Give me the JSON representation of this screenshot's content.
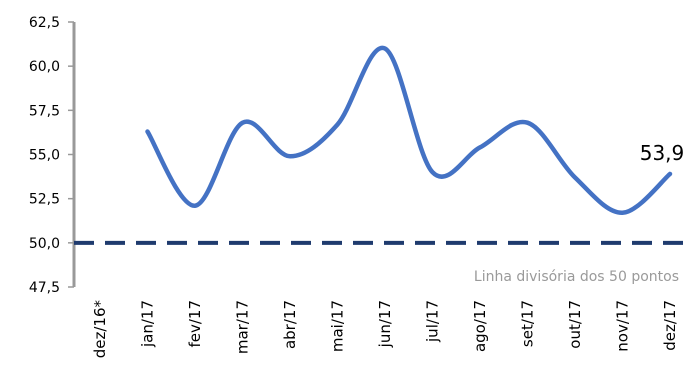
{
  "chart_data": {
    "type": "line",
    "categories": [
      "dez/16*",
      "jan/17",
      "fev/17",
      "mar/17",
      "abr/17",
      "mai/17",
      "jun/17",
      "jul/17",
      "ago/17",
      "set/17",
      "out/17",
      "nov/17",
      "dez/17"
    ],
    "series": [
      {
        "values": [
          null,
          56.3,
          52.1,
          56.8,
          54.9,
          56.7,
          61.0,
          54.0,
          55.4,
          56.8,
          53.7,
          51.7,
          53.9
        ]
      }
    ],
    "y_ticks": [
      "62,5",
      "60,0",
      "57,5",
      "55,0",
      "52,5",
      "50,0",
      "47,5"
    ],
    "ylim": [
      47.5,
      62.5
    ],
    "reference_line": {
      "value": 50.0,
      "label": "Linha divisória dos 50 pontos",
      "style": "dashed"
    },
    "data_label": {
      "category": "dez/17",
      "text": "53,9"
    },
    "grid": false,
    "legend": "none",
    "colors": {
      "line": "#4472C4",
      "reference": "#1F3B6E",
      "axis": "#999999"
    }
  }
}
